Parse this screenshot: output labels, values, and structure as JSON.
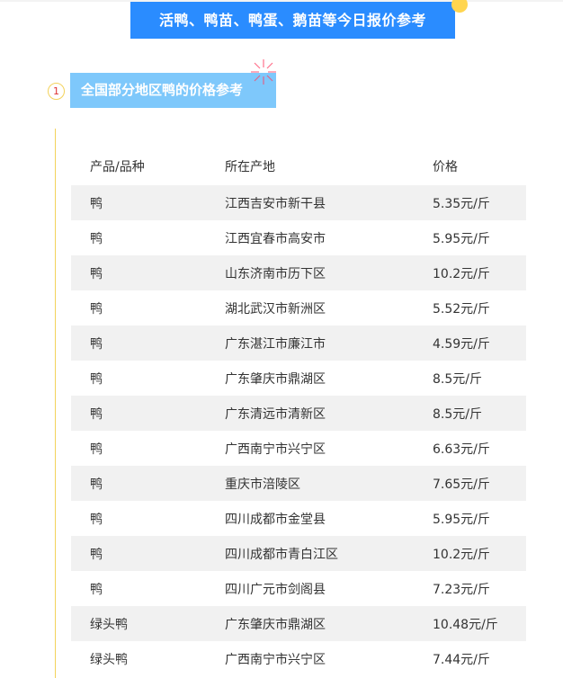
{
  "banner": {
    "title": "活鸭、鸭苗、鸭蛋、鹅苗等今日报价参考"
  },
  "section": {
    "number": "1",
    "title": "全国部分地区鸭的价格参考"
  },
  "table": {
    "headers": [
      "产品/品种",
      "所在产地",
      "价格"
    ],
    "rows": [
      [
        "鸭",
        "江西吉安市新干县",
        "5.35元/斤"
      ],
      [
        "鸭",
        "江西宜春市高安市",
        "5.95元/斤"
      ],
      [
        "鸭",
        "山东济南市历下区",
        "10.2元/斤"
      ],
      [
        "鸭",
        "湖北武汉市新洲区",
        "5.52元/斤"
      ],
      [
        "鸭",
        "广东湛江市廉江市",
        "4.59元/斤"
      ],
      [
        "鸭",
        "广东肇庆市鼎湖区",
        "8.5元/斤"
      ],
      [
        "鸭",
        "广东清远市清新区",
        "8.5元/斤"
      ],
      [
        "鸭",
        "广西南宁市兴宁区",
        "6.63元/斤"
      ],
      [
        "鸭",
        "重庆市涪陵区",
        "7.65元/斤"
      ],
      [
        "鸭",
        "四川成都市金堂县",
        "5.95元/斤"
      ],
      [
        "鸭",
        "四川成都市青白江区",
        "10.2元/斤"
      ],
      [
        "鸭",
        "四川广元市剑阁县",
        "7.23元/斤"
      ],
      [
        "绿头鸭",
        "广东肇庆市鼎湖区",
        "10.48元/斤"
      ],
      [
        "绿头鸭",
        "广西南宁市兴宁区",
        "7.44元/斤"
      ]
    ]
  },
  "colors": {
    "banner": "#2a8cff",
    "section": "#7ec8fb",
    "accent": "#ffd54f",
    "stripe": "#f1f1f1"
  }
}
